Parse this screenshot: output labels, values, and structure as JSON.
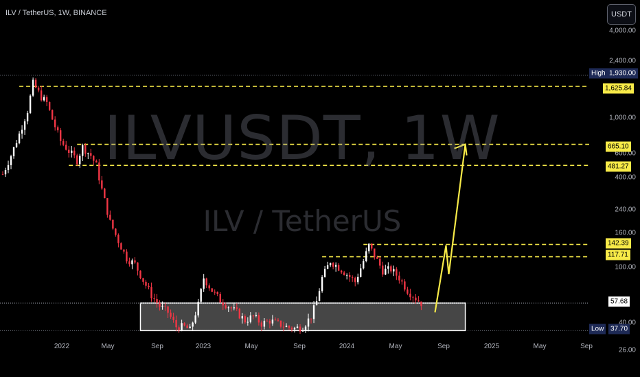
{
  "header": {
    "symbol_title": "ILV / TetherUS, 1W, BINANCE",
    "currency_button": "USDT"
  },
  "watermark": {
    "main": "ILVUSDT, 1W",
    "sub": "ILV / TetherUS"
  },
  "price_axis": {
    "ticks": [
      "4,000.00",
      "2,400.00",
      "1,000.00",
      "600.00",
      "400.00",
      "240.00",
      "160.00",
      "100.00",
      "40.00",
      "26.00"
    ],
    "labels": {
      "high_tag": "High",
      "high_value": "1,930.00",
      "level_1": "1,625.84",
      "level_2": "665.10",
      "level_3": "481.27",
      "level_4": "142.39",
      "level_5": "117.71",
      "current_price": "57.68",
      "low_tag": "Low",
      "low_value": "37.70"
    }
  },
  "time_axis": {
    "labels": [
      "2022",
      "May",
      "Sep",
      "2023",
      "May",
      "Sep",
      "2024",
      "May",
      "Sep",
      "2025",
      "May",
      "Sep"
    ]
  },
  "chart_data": {
    "type": "candlestick",
    "symbol": "ILVUSDT",
    "interval": "1W",
    "exchange": "BINANCE",
    "scale": "log",
    "ylim": [
      26,
      4000
    ],
    "xlim": [
      "2021-08-30",
      "2025-10-06"
    ],
    "high": 1930,
    "low": 37.7,
    "last_price": 57.68,
    "resistance_levels": [
      1625.84,
      665.1,
      481.27,
      142.39,
      117.71
    ],
    "support_zone": [
      37.7,
      57.68
    ],
    "projection_path": [
      [
        "2024-09-09",
        50
      ],
      [
        "2024-10-07",
        140
      ],
      [
        "2024-10-14",
        90
      ],
      [
        "2024-11-25",
        665.1
      ]
    ],
    "colors": {
      "up": "#ffffff",
      "down": "#f23645",
      "levels": "#f7ea48",
      "projection": "#f7ea48",
      "background": "#000000"
    },
    "close_series": [
      [
        "2021-09-06",
        420
      ],
      [
        "2021-09-27",
        560
      ],
      [
        "2021-10-18",
        780
      ],
      [
        "2021-11-08",
        1120
      ],
      [
        "2021-11-22",
        1700
      ],
      [
        "2021-12-13",
        1380
      ],
      [
        "2021-12-27",
        1260
      ],
      [
        "2022-01-10",
        980
      ],
      [
        "2022-01-31",
        700
      ],
      [
        "2022-02-21",
        600
      ],
      [
        "2022-03-14",
        520
      ],
      [
        "2022-03-28",
        640
      ],
      [
        "2022-04-18",
        560
      ],
      [
        "2022-05-02",
        480
      ],
      [
        "2022-05-16",
        330
      ],
      [
        "2022-06-06",
        200
      ],
      [
        "2022-06-27",
        150
      ],
      [
        "2022-07-18",
        115
      ],
      [
        "2022-08-08",
        105
      ],
      [
        "2022-08-29",
        82
      ],
      [
        "2022-09-19",
        65
      ],
      [
        "2022-10-10",
        55
      ],
      [
        "2022-10-31",
        50
      ],
      [
        "2022-11-21",
        40
      ],
      [
        "2022-12-12",
        40
      ],
      [
        "2022-12-26",
        38
      ],
      [
        "2023-01-16",
        56
      ],
      [
        "2023-01-30",
        85
      ],
      [
        "2023-02-20",
        70
      ],
      [
        "2023-03-13",
        60
      ],
      [
        "2023-04-03",
        55
      ],
      [
        "2023-04-24",
        50
      ],
      [
        "2023-05-15",
        44
      ],
      [
        "2023-06-05",
        47
      ],
      [
        "2023-06-26",
        42
      ],
      [
        "2023-07-17",
        44
      ],
      [
        "2023-08-07",
        42
      ],
      [
        "2023-08-28",
        40
      ],
      [
        "2023-09-18",
        39
      ],
      [
        "2023-10-09",
        40
      ],
      [
        "2023-10-30",
        47
      ],
      [
        "2023-11-13",
        59
      ],
      [
        "2023-11-27",
        85
      ],
      [
        "2023-12-18",
        110
      ],
      [
        "2024-01-08",
        100
      ],
      [
        "2024-01-29",
        90
      ],
      [
        "2024-02-19",
        80
      ],
      [
        "2024-03-11",
        110
      ],
      [
        "2024-03-25",
        140
      ],
      [
        "2024-04-08",
        120
      ],
      [
        "2024-04-29",
        95
      ],
      [
        "2024-05-20",
        97
      ],
      [
        "2024-06-10",
        85
      ],
      [
        "2024-07-01",
        70
      ],
      [
        "2024-07-22",
        62
      ],
      [
        "2024-08-05",
        57.68
      ]
    ]
  }
}
